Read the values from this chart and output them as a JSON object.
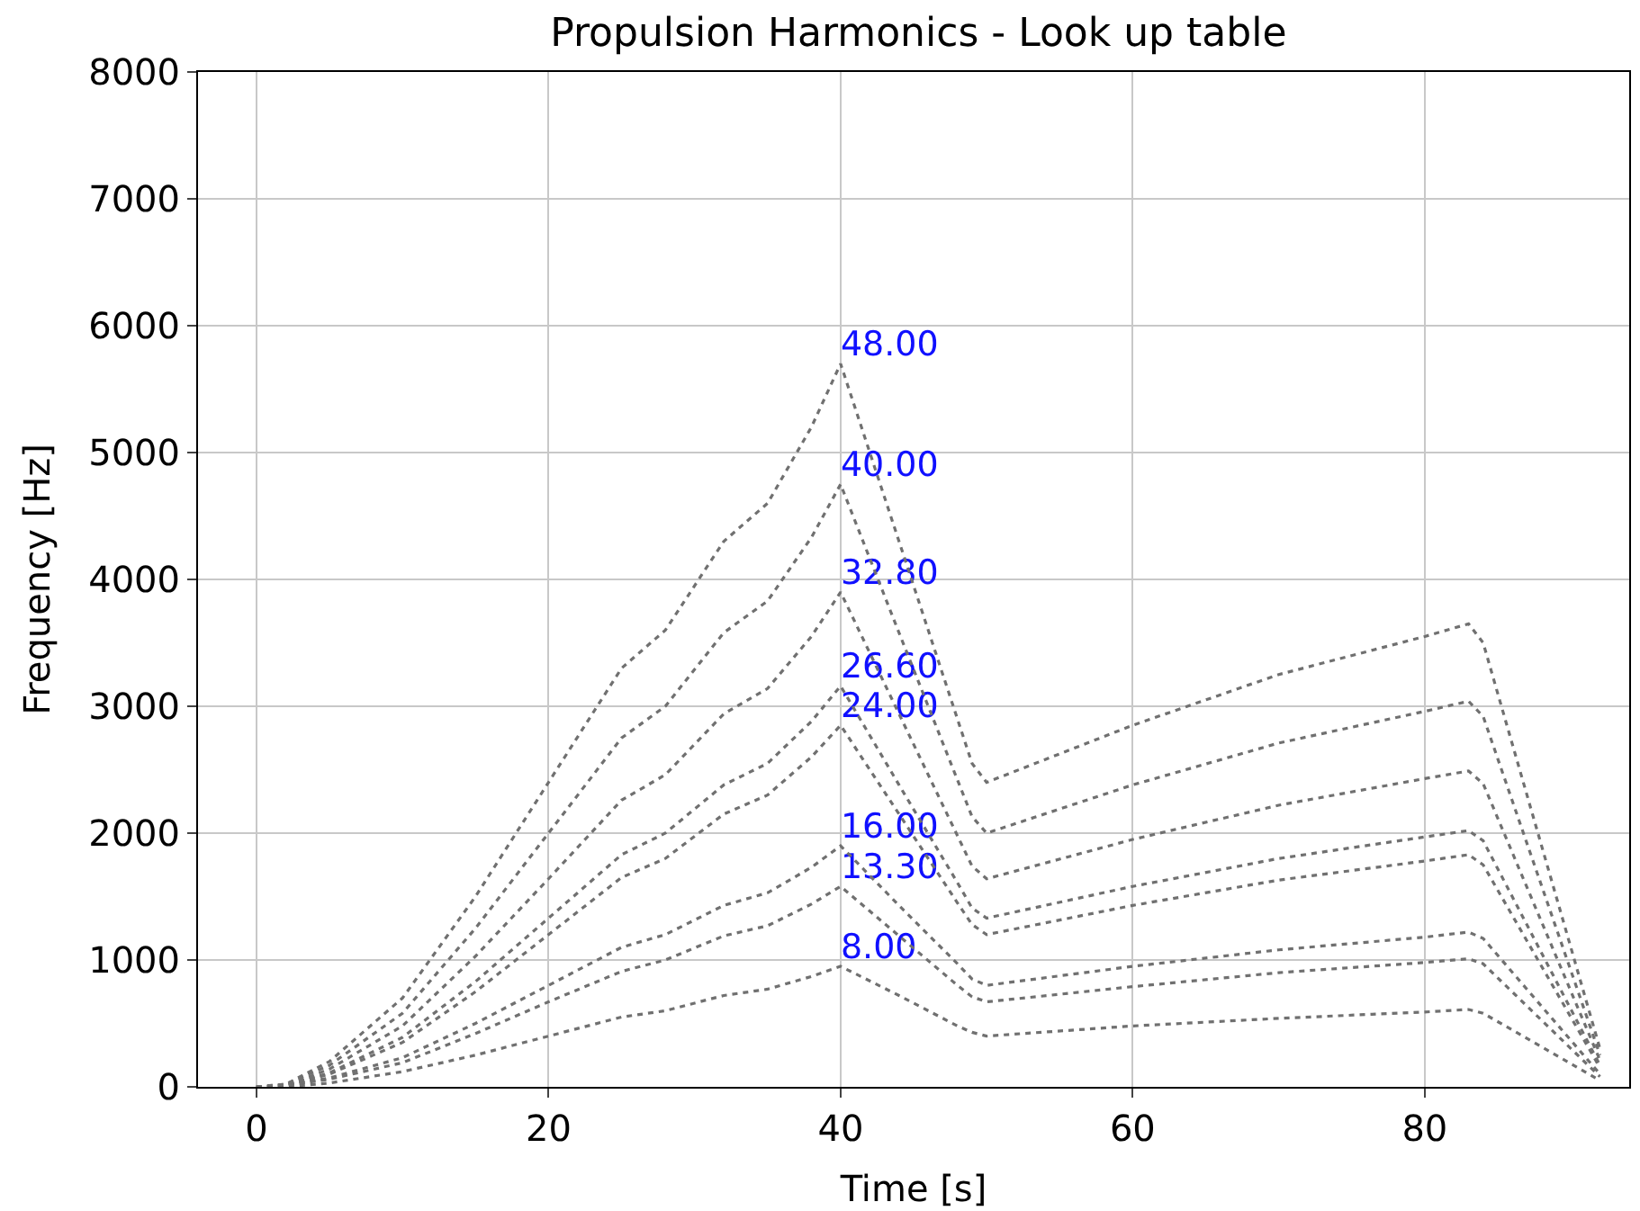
{
  "chart_data": {
    "type": "line",
    "title": "Propulsion Harmonics - Look up table",
    "xlabel": "Time [s]",
    "ylabel": "Frequency [Hz]",
    "x": [
      0,
      2,
      5,
      10,
      15,
      20,
      25,
      28,
      32,
      35,
      38,
      40,
      44,
      48,
      49,
      50,
      60,
      70,
      80,
      83,
      84,
      92
    ],
    "series": [
      {
        "name": "8.00",
        "color": "#707070",
        "values": [
          0,
          0,
          30,
          120,
          250,
          400,
          550,
          600,
          720,
          770,
          870,
          950,
          720,
          480,
          430,
          400,
          480,
          540,
          590,
          610,
          580,
          50
        ]
      },
      {
        "name": "13.30",
        "color": "#707070",
        "values": [
          0,
          10,
          60,
          190,
          420,
          670,
          910,
          1000,
          1190,
          1270,
          1440,
          1580,
          1190,
          800,
          710,
          670,
          790,
          900,
          980,
          1010,
          970,
          80
        ]
      },
      {
        "name": "16.00",
        "color": "#707070",
        "values": [
          0,
          10,
          70,
          230,
          500,
          800,
          1100,
          1200,
          1430,
          1530,
          1730,
          1900,
          1430,
          970,
          850,
          800,
          950,
          1080,
          1180,
          1220,
          1170,
          100
        ]
      },
      {
        "name": "24.00",
        "color": "#707070",
        "values": [
          0,
          10,
          100,
          350,
          750,
          1200,
          1650,
          1800,
          2150,
          2300,
          2600,
          2850,
          2150,
          1450,
          1280,
          1200,
          1430,
          1630,
          1780,
          1830,
          1750,
          150
        ]
      },
      {
        "name": "26.60",
        "color": "#707070",
        "values": [
          0,
          10,
          110,
          390,
          830,
          1330,
          1830,
          2000,
          2380,
          2550,
          2880,
          3160,
          2380,
          1610,
          1410,
          1330,
          1580,
          1800,
          1970,
          2020,
          1940,
          170
        ]
      },
      {
        "name": "32.80",
        "color": "#707070",
        "values": [
          0,
          10,
          140,
          480,
          1030,
          1640,
          2260,
          2460,
          2940,
          3140,
          3550,
          3900,
          2940,
          1980,
          1740,
          1640,
          1950,
          2220,
          2430,
          2490,
          2390,
          210
        ]
      },
      {
        "name": "40.00",
        "color": "#707070",
        "values": [
          0,
          20,
          170,
          580,
          1250,
          2000,
          2750,
          3000,
          3580,
          3830,
          4330,
          4750,
          3580,
          2420,
          2130,
          2000,
          2380,
          2710,
          2960,
          3040,
          2920,
          250
        ]
      },
      {
        "name": "48.00",
        "color": "#707070",
        "values": [
          0,
          20,
          200,
          700,
          1500,
          2400,
          3300,
          3600,
          4300,
          4600,
          5200,
          5700,
          4300,
          2900,
          2550,
          2400,
          2850,
          3250,
          3550,
          3650,
          3500,
          300
        ]
      }
    ],
    "xlim": [
      -4,
      94
    ],
    "xticks": [
      0,
      20,
      40,
      60,
      80
    ],
    "ylim": [
      0,
      8000
    ],
    "yticks": [
      0,
      1000,
      2000,
      3000,
      4000,
      5000,
      6000,
      7000,
      8000
    ],
    "grid": true,
    "line_style": "dotted"
  }
}
